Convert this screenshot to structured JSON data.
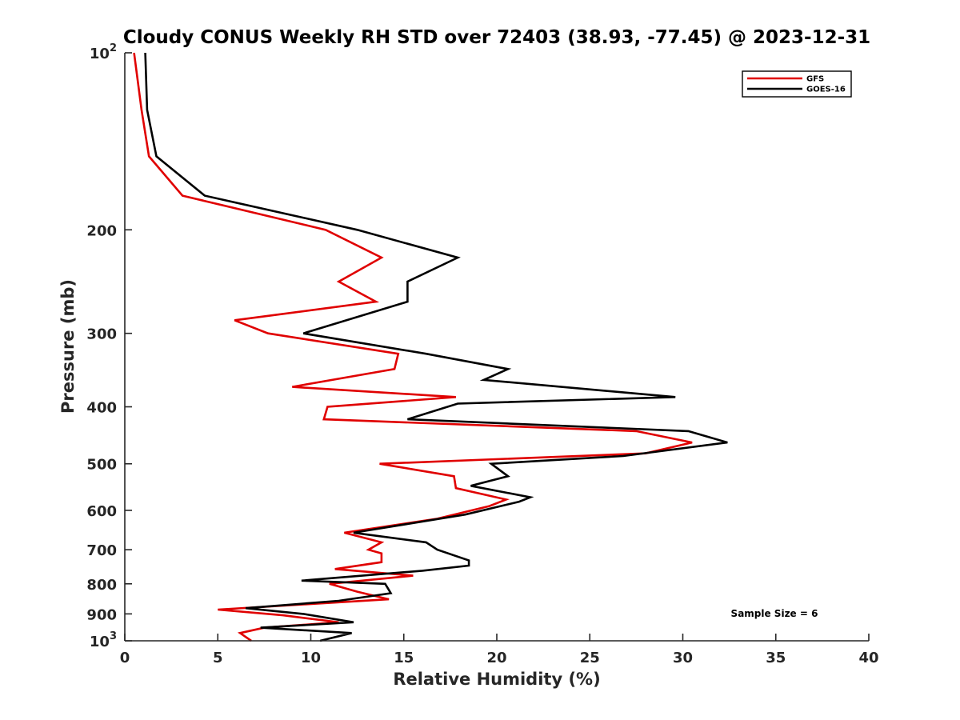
{
  "chart_data": {
    "type": "line",
    "title": "Cloudy CONUS Weekly RH STD over 72403 (38.93, -77.45) @ 2023-12-31",
    "xlabel": "Relative Humidity (%)",
    "ylabel": "Pressure (mb)",
    "xlim": [
      0,
      40
    ],
    "ylim": [
      100,
      1000
    ],
    "y_scale": "log",
    "y_reversed": true,
    "x_ticks": [
      "0",
      "5",
      "10",
      "15",
      "20",
      "25",
      "30",
      "35",
      "40"
    ],
    "y_ticks": [
      {
        "value": 100,
        "base": "10",
        "exp": "2"
      },
      {
        "value": 200,
        "label": "200"
      },
      {
        "value": 300,
        "label": "300"
      },
      {
        "value": 400,
        "label": "400"
      },
      {
        "value": 500,
        "label": "500"
      },
      {
        "value": 600,
        "label": "600"
      },
      {
        "value": 700,
        "label": "700"
      },
      {
        "value": 800,
        "label": "800"
      },
      {
        "value": 900,
        "label": "900"
      },
      {
        "value": 1000,
        "base": "10",
        "exp": "3"
      }
    ],
    "grid": false,
    "legend_position": "top-right",
    "series": [
      {
        "name": "GFS",
        "color": "#e00000",
        "points": [
          [
            0.5,
            100
          ],
          [
            0.9,
            125
          ],
          [
            1.3,
            150
          ],
          [
            3.1,
            175
          ],
          [
            10.8,
            200
          ],
          [
            13.8,
            223
          ],
          [
            11.5,
            245
          ],
          [
            13.5,
            265
          ],
          [
            5.9,
            285
          ],
          [
            7.7,
            300
          ],
          [
            14.7,
            325
          ],
          [
            14.5,
            345
          ],
          [
            9.0,
            370
          ],
          [
            17.8,
            385
          ],
          [
            10.9,
            400
          ],
          [
            10.7,
            420
          ],
          [
            27.5,
            440
          ],
          [
            30.5,
            460
          ],
          [
            28.0,
            480
          ],
          [
            13.7,
            500
          ],
          [
            17.7,
            525
          ],
          [
            17.8,
            550
          ],
          [
            20.5,
            575
          ],
          [
            19.6,
            590
          ],
          [
            16.8,
            620
          ],
          [
            11.8,
            655
          ],
          [
            13.8,
            680
          ],
          [
            13.1,
            700
          ],
          [
            13.8,
            710
          ],
          [
            13.8,
            735
          ],
          [
            11.3,
            755
          ],
          [
            15.5,
            775
          ],
          [
            11.0,
            800
          ],
          [
            12.5,
            825
          ],
          [
            14.2,
            850
          ],
          [
            5.0,
            885
          ],
          [
            8.5,
            905
          ],
          [
            11.5,
            930
          ],
          [
            7.5,
            950
          ],
          [
            6.2,
            970
          ],
          [
            6.8,
            1000
          ]
        ]
      },
      {
        "name": "GOES-16",
        "color": "#000000",
        "points": [
          [
            1.1,
            100
          ],
          [
            1.2,
            125
          ],
          [
            1.7,
            150
          ],
          [
            4.3,
            175
          ],
          [
            12.5,
            200
          ],
          [
            17.9,
            223
          ],
          [
            15.2,
            245
          ],
          [
            15.2,
            265
          ],
          [
            9.6,
            300
          ],
          [
            16.2,
            325
          ],
          [
            20.6,
            345
          ],
          [
            19.3,
            360
          ],
          [
            29.6,
            385
          ],
          [
            17.9,
            395
          ],
          [
            15.2,
            420
          ],
          [
            30.3,
            440
          ],
          [
            32.4,
            460
          ],
          [
            26.8,
            485
          ],
          [
            19.7,
            500
          ],
          [
            20.6,
            525
          ],
          [
            18.6,
            545
          ],
          [
            21.8,
            570
          ],
          [
            21.2,
            580
          ],
          [
            18.3,
            610
          ],
          [
            12.3,
            655
          ],
          [
            16.2,
            680
          ],
          [
            16.8,
            700
          ],
          [
            18.5,
            730
          ],
          [
            18.5,
            745
          ],
          [
            16.0,
            760
          ],
          [
            9.5,
            790
          ],
          [
            14.0,
            800
          ],
          [
            14.3,
            830
          ],
          [
            11.5,
            855
          ],
          [
            6.5,
            880
          ],
          [
            9.6,
            900
          ],
          [
            12.3,
            930
          ],
          [
            7.3,
            950
          ],
          [
            12.2,
            970
          ],
          [
            10.5,
            1000
          ]
        ]
      }
    ],
    "annotation": "Sample Size = 6"
  }
}
